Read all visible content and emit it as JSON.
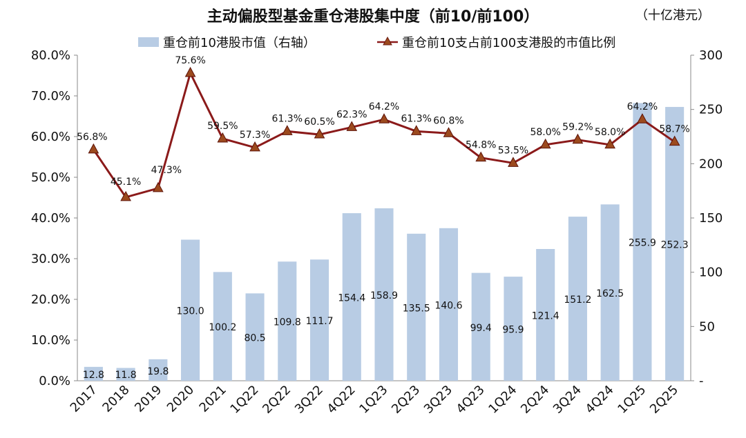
{
  "title": "主动偏股型基金重仓港股集中度（前10/前100）",
  "unit": "（十亿港元）",
  "chart_data": {
    "type": "bar+line",
    "categories": [
      "2017",
      "2018",
      "2019",
      "2020",
      "2021",
      "1Q22",
      "2Q22",
      "3Q22",
      "4Q22",
      "1Q23",
      "2Q23",
      "3Q23",
      "4Q23",
      "1Q24",
      "2Q24",
      "3Q24",
      "4Q24",
      "1Q25",
      "2Q25"
    ],
    "series": [
      {
        "name": "重仓前10港股市值（右轴）",
        "type": "bar",
        "axis": "right",
        "color": "#b8cce4",
        "values": [
          12.8,
          11.8,
          19.8,
          130.0,
          100.2,
          80.5,
          109.8,
          111.7,
          154.4,
          158.9,
          135.5,
          140.6,
          99.4,
          95.9,
          121.4,
          151.2,
          162.5,
          255.9,
          252.3
        ],
        "labels": [
          "12.8",
          "11.8",
          "19.8",
          "130.0",
          "100.2",
          "80.5",
          "109.8",
          "111.7",
          "154.4",
          "158.9",
          "135.5",
          "140.6",
          "99.4",
          "95.9",
          "121.4",
          "151.2",
          "162.5",
          "255.9",
          "252.3"
        ]
      },
      {
        "name": "重仓前10支占前100支港股的市值比例",
        "type": "line",
        "axis": "left",
        "color": "#8b1a1a",
        "marker_color": "#9c4a1e",
        "values": [
          56.8,
          45.1,
          47.3,
          75.6,
          59.5,
          57.3,
          61.3,
          60.5,
          62.3,
          64.2,
          61.3,
          60.8,
          54.8,
          53.5,
          58.0,
          59.2,
          58.0,
          64.2,
          58.7
        ],
        "labels": [
          "56.8%",
          "45.1%",
          "47.3%",
          "75.6%",
          "59.5%",
          "57.3%",
          "61.3%",
          "60.5%",
          "62.3%",
          "64.2%",
          "61.3%",
          "60.8%",
          "54.8%",
          "53.5%",
          "58.0%",
          "59.2%",
          "58.0%",
          "64.2%",
          "58.7%"
        ]
      }
    ],
    "y_left": {
      "min": 0,
      "max": 80,
      "ticks": [
        "0.0%",
        "10.0%",
        "20.0%",
        "30.0%",
        "40.0%",
        "50.0%",
        "60.0%",
        "70.0%",
        "80.0%"
      ]
    },
    "y_right": {
      "min": 0,
      "max": 300,
      "ticks": [
        "-",
        "50",
        "100",
        "150",
        "200",
        "250",
        "300"
      ]
    },
    "legend_position": "top",
    "grid": false
  }
}
